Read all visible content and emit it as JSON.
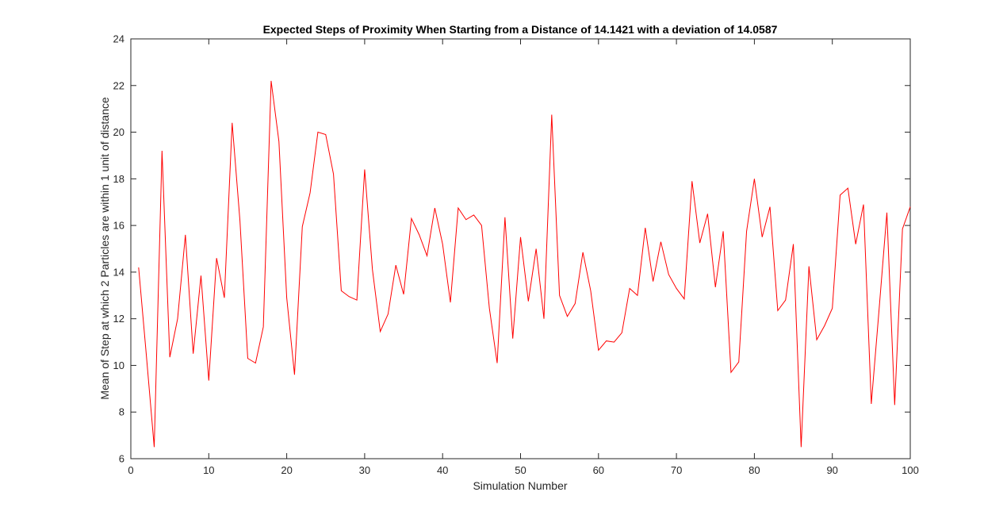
{
  "chart_data": {
    "type": "line",
    "title": "Expected Steps of Proximity When Starting from a Distance of 14.1421 with a deviation of 14.0587",
    "xlabel": "Simulation Number",
    "ylabel": "Mean of Step at which 2 Particles are within 1 unit of distance",
    "xlim": [
      0,
      100
    ],
    "ylim": [
      6,
      24
    ],
    "xticks": [
      0,
      10,
      20,
      30,
      40,
      50,
      60,
      70,
      80,
      90,
      100
    ],
    "yticks": [
      6,
      8,
      10,
      12,
      14,
      16,
      18,
      20,
      22,
      24
    ],
    "grid": false,
    "legend": "none",
    "series": [
      {
        "color": "#ff0000",
        "x": [
          1,
          2,
          3,
          4,
          5,
          6,
          7,
          8,
          9,
          10,
          11,
          12,
          13,
          14,
          15,
          16,
          17,
          18,
          19,
          20,
          21,
          22,
          23,
          24,
          25,
          26,
          27,
          28,
          29,
          30,
          31,
          32,
          33,
          34,
          35,
          36,
          37,
          38,
          39,
          40,
          41,
          42,
          43,
          44,
          45,
          46,
          47,
          48,
          49,
          50,
          51,
          52,
          53,
          54,
          55,
          56,
          57,
          58,
          59,
          60,
          61,
          62,
          63,
          64,
          65,
          66,
          67,
          68,
          69,
          70,
          71,
          72,
          73,
          74,
          75,
          76,
          77,
          78,
          79,
          80,
          81,
          82,
          83,
          84,
          85,
          86,
          87,
          88,
          89,
          90,
          91,
          92,
          93,
          94,
          95,
          96,
          97,
          98,
          99,
          100
        ],
        "y": [
          14.2,
          10.4,
          6.5,
          19.2,
          10.35,
          12.0,
          15.6,
          10.5,
          13.85,
          9.35,
          14.6,
          12.9,
          20.4,
          16.2,
          10.3,
          10.1,
          11.65,
          22.2,
          19.6,
          12.9,
          9.6,
          15.95,
          17.4,
          20.0,
          19.9,
          18.2,
          13.2,
          12.95,
          12.8,
          18.4,
          14.1,
          11.45,
          12.2,
          14.3,
          13.05,
          16.3,
          15.6,
          14.7,
          16.75,
          15.2,
          12.7,
          16.75,
          16.25,
          16.45,
          16.0,
          12.45,
          10.1,
          16.35,
          11.15,
          15.5,
          12.75,
          15.0,
          12.0,
          20.75,
          13.0,
          12.1,
          12.65,
          14.85,
          13.2,
          10.65,
          11.05,
          11.0,
          11.4,
          13.3,
          13.0,
          15.9,
          13.6,
          15.3,
          13.9,
          13.3,
          12.85,
          17.9,
          15.25,
          16.5,
          13.35,
          15.75,
          9.7,
          10.15,
          15.75,
          18.0,
          15.5,
          16.8,
          12.35,
          12.8,
          15.2,
          6.5,
          14.25,
          11.1,
          11.7,
          12.45,
          17.3,
          17.6,
          15.2,
          16.9,
          8.35,
          12.4,
          16.55,
          8.3,
          15.85,
          16.8
        ]
      }
    ]
  }
}
